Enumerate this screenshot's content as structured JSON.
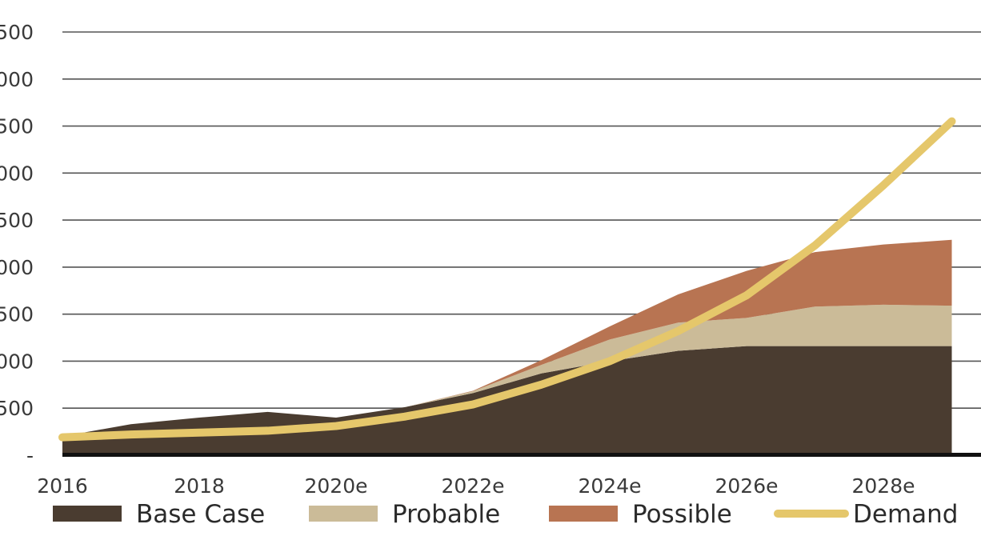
{
  "chart_data": {
    "type": "area",
    "stacked": true,
    "x": [
      "2016",
      "2017",
      "2018",
      "2019",
      "2020e",
      "2021e",
      "2022e",
      "2023e",
      "2024e",
      "2025e",
      "2026e",
      "2027e",
      "2028e",
      "2029e"
    ],
    "xtick_labels": [
      "2016",
      "2018",
      "2020e",
      "2022e",
      "2024e",
      "2026e",
      "2028e"
    ],
    "ytick_labels": [
      "-",
      "500",
      "000",
      "500",
      "000",
      "500",
      "000",
      "500",
      "000",
      "500"
    ],
    "ylim": [
      0,
      4500
    ],
    "grid": true,
    "legend_position": "bottom",
    "series": [
      {
        "name": "Base Case",
        "kind": "area",
        "color": "#4a3c30",
        "values": [
          200,
          330,
          400,
          460,
          400,
          510,
          660,
          870,
          1000,
          1110,
          1160,
          1160,
          1160,
          1160
        ]
      },
      {
        "name": "Probable",
        "kind": "area",
        "color": "#cbbb98",
        "values": [
          0,
          0,
          0,
          0,
          0,
          0,
          20,
          90,
          230,
          300,
          300,
          420,
          440,
          430
        ]
      },
      {
        "name": "Possible",
        "kind": "area",
        "color": "#b87452",
        "values": [
          0,
          0,
          0,
          0,
          0,
          0,
          5,
          50,
          140,
          300,
          500,
          580,
          640,
          700
        ]
      },
      {
        "name": "Demand",
        "kind": "line",
        "color": "#e5c76b",
        "values": [
          190,
          220,
          240,
          260,
          310,
          410,
          540,
          750,
          1000,
          1320,
          1700,
          2230,
          2870,
          3550
        ]
      }
    ]
  }
}
